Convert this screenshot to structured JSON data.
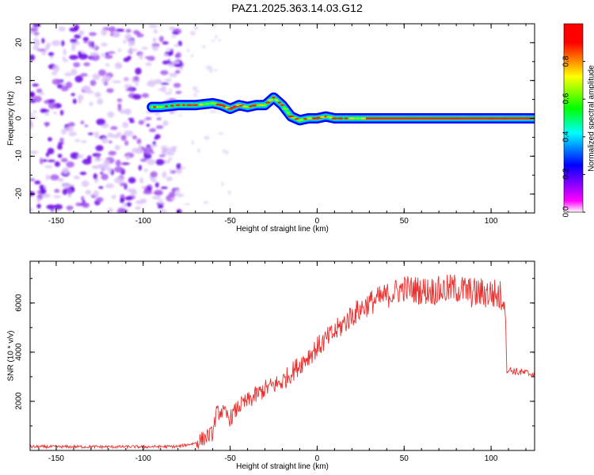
{
  "title": "PAZ1.2025.363.14.03.G12",
  "chart_data": [
    {
      "type": "heatmap",
      "title": "PAZ1.2025.363.14.03.G12",
      "xlabel": "Height of straight line (km)",
      "ylabel": "Frequency (Hz)",
      "xlim": [
        -165,
        125
      ],
      "ylim": [
        -25,
        25
      ],
      "x_ticks": [
        -150,
        -100,
        -50,
        0,
        50,
        100
      ],
      "y_ticks": [
        -20,
        -10,
        0,
        10,
        20
      ],
      "colorbar": {
        "label": "Normalized spectral amplitude",
        "range": [
          0,
          1
        ],
        "ticks": [
          "0.0",
          "0.2",
          "0.4",
          "0.6",
          "0.8"
        ],
        "colors": [
          "#ffffff",
          "#ff00ff",
          "#0000ff",
          "#00ffff",
          "#00ff00",
          "#ffff00",
          "#ff0000"
        ]
      },
      "ridge": {
        "description": "dominant frequency track",
        "x": [
          -95,
          -90,
          -80,
          -70,
          -60,
          -55,
          -50,
          -45,
          -40,
          -35,
          -30,
          -25,
          -20,
          -15,
          -10,
          -5,
          0,
          5,
          10,
          20,
          30,
          50,
          70,
          100,
          125
        ],
        "y": [
          3,
          3,
          3.5,
          3.5,
          4,
          3.5,
          2.5,
          3.5,
          3,
          3.5,
          3.5,
          5.5,
          3.5,
          0.5,
          -0.5,
          0,
          0,
          0.5,
          0,
          0,
          0,
          0,
          0,
          0,
          0
        ]
      },
      "noise_region_x": [
        -165,
        -90
      ]
    },
    {
      "type": "line",
      "xlabel": "Height of straight line (km)",
      "ylabel": "SNR (10 * v/v)",
      "xlim": [
        -165,
        125
      ],
      "ylim": [
        0,
        7700
      ],
      "x_ticks": [
        -150,
        -100,
        -50,
        0,
        50,
        100
      ],
      "y_ticks": [
        2000,
        4000,
        6000
      ],
      "color": "#e8312f",
      "series": [
        {
          "name": "SNR",
          "x": [
            -165,
            -150,
            -120,
            -100,
            -80,
            -70,
            -60,
            -58,
            -55,
            -50,
            -45,
            -40,
            -30,
            -20,
            -10,
            0,
            10,
            20,
            30,
            40,
            50,
            60,
            70,
            80,
            90,
            100,
            108,
            109,
            115,
            125
          ],
          "y": [
            150,
            150,
            150,
            150,
            160,
            300,
            700,
            1500,
            1600,
            1300,
            1800,
            2000,
            2500,
            2800,
            3500,
            4200,
            4800,
            5500,
            6000,
            6300,
            6600,
            6500,
            6500,
            6600,
            6400,
            6400,
            6200,
            3300,
            3200,
            3100
          ]
        }
      ]
    }
  ]
}
